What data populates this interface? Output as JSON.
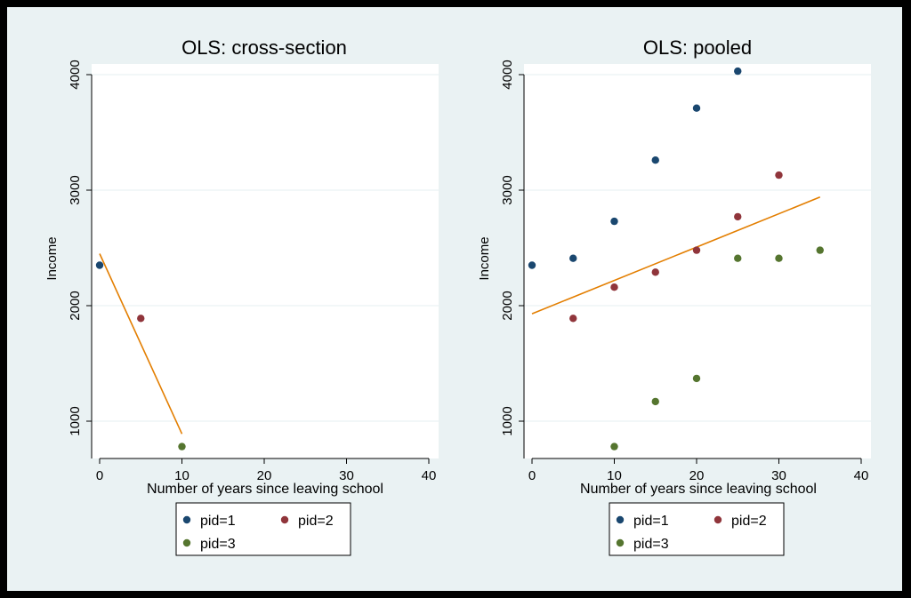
{
  "colors": {
    "pid1": "#1a476f",
    "pid2": "#90353b",
    "pid3": "#55752f",
    "fit_line": "#e37e00",
    "plot_bg": "#ffffff",
    "outer_bg": "#eaf2f3",
    "gridline": "#eaf2f3"
  },
  "chart_data": [
    {
      "type": "scatter",
      "title": "OLS: cross-section",
      "xlabel": "Number of years since leaving school",
      "ylabel": "Income",
      "xlim": [
        0,
        40
      ],
      "ylim": [
        800,
        4000
      ],
      "xticks": [
        "0",
        "10",
        "20",
        "30",
        "40"
      ],
      "yticks": [
        "1000",
        "2000",
        "3000",
        "4000"
      ],
      "grid": "horizontal",
      "legend": {
        "placement": "bottom",
        "entries": [
          "pid=1",
          "pid=2",
          "pid=3"
        ]
      },
      "series": [
        {
          "name": "pid=1",
          "x": [
            0
          ],
          "y": [
            2350
          ]
        },
        {
          "name": "pid=2",
          "x": [
            5
          ],
          "y": [
            1890
          ]
        },
        {
          "name": "pid=3",
          "x": [
            10
          ],
          "y": [
            780
          ]
        }
      ],
      "fit_line": {
        "x": [
          0,
          10
        ],
        "y": [
          2450,
          890
        ]
      }
    },
    {
      "type": "scatter",
      "title": "OLS: pooled",
      "xlabel": "Number of years since leaving school",
      "ylabel": "Income",
      "xlim": [
        0,
        40
      ],
      "ylim": [
        800,
        4000
      ],
      "xticks": [
        "0",
        "10",
        "20",
        "30",
        "40"
      ],
      "yticks": [
        "1000",
        "2000",
        "3000",
        "4000"
      ],
      "grid": "horizontal",
      "legend": {
        "placement": "bottom",
        "entries": [
          "pid=1",
          "pid=2",
          "pid=3"
        ]
      },
      "series": [
        {
          "name": "pid=1",
          "x": [
            0,
            5,
            10,
            15,
            20,
            25
          ],
          "y": [
            2350,
            2410,
            2730,
            3260,
            3710,
            4030
          ]
        },
        {
          "name": "pid=2",
          "x": [
            5,
            10,
            15,
            20,
            25,
            30
          ],
          "y": [
            1890,
            2160,
            2290,
            2480,
            2770,
            3130
          ]
        },
        {
          "name": "pid=3",
          "x": [
            10,
            15,
            20,
            25,
            30,
            35
          ],
          "y": [
            780,
            1170,
            1370,
            2410,
            2410,
            2480
          ]
        }
      ],
      "fit_line": {
        "x": [
          0,
          35
        ],
        "y": [
          1930,
          2940
        ]
      }
    }
  ]
}
